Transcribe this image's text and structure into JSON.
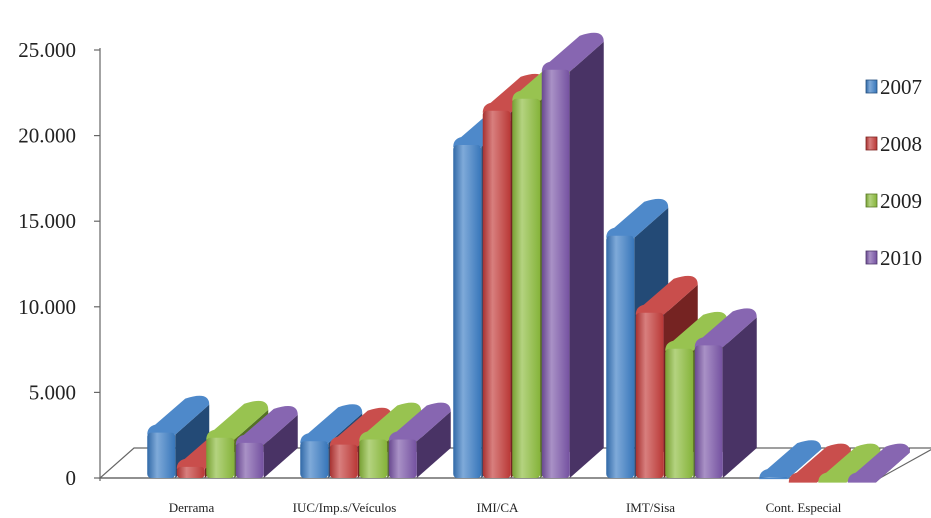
{
  "chart_data": {
    "type": "bar",
    "title": "",
    "xlabel": "",
    "ylabel": "",
    "categories": [
      "Derrama",
      "IUC/Imp.s/Veículos",
      "IMI/CA",
      "IMT/Sisa",
      "Cont. Especial"
    ],
    "ylim": [
      0,
      25000
    ],
    "yticks": [
      "0",
      "5.000",
      "10.000",
      "15.000",
      "20.000",
      "25.000"
    ],
    "ytick_values": [
      0,
      5000,
      10000,
      15000,
      20000,
      25000
    ],
    "legend_position": "right",
    "grid": false,
    "series": [
      {
        "name": "2007",
        "color": "#3a7cc4",
        "values": [
          3000,
          2500,
          19800,
          14500,
          400
        ]
      },
      {
        "name": "2008",
        "color": "#c33a38",
        "values": [
          1000,
          2300,
          21800,
          10000,
          200
        ]
      },
      {
        "name": "2009",
        "color": "#8cbc3c",
        "values": [
          2700,
          2600,
          22500,
          7900,
          200
        ]
      },
      {
        "name": "2010",
        "color": "#7a55a8",
        "values": [
          2400,
          2600,
          24200,
          8100,
          200
        ]
      }
    ]
  }
}
